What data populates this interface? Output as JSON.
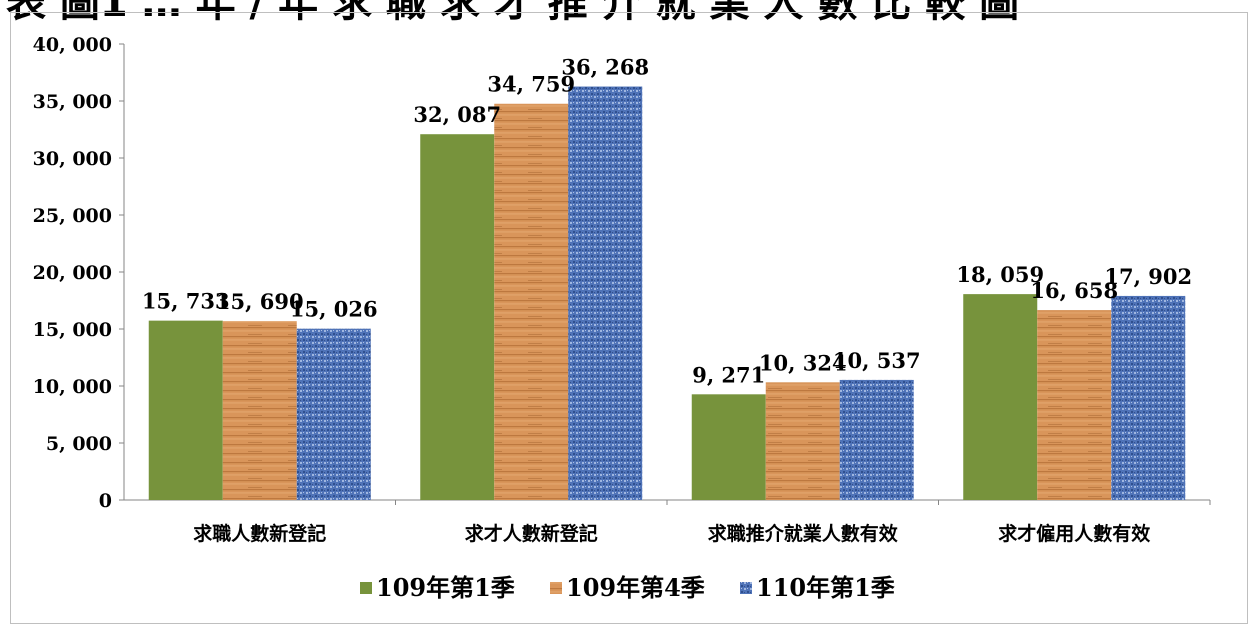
{
  "title": "表 圖1 … 年 / 年 求 職 求 才 推 介 就 業 人 數 比 較 圖",
  "colors": {
    "s1": "#77933c",
    "s2": "#d9955a",
    "s3": "#4f73b8",
    "axis": "#868686",
    "text": "#000000"
  },
  "chart_data": {
    "type": "bar",
    "categories": [
      "求職人數新登記",
      "求才人數新登記",
      "求職推介就業人數有效",
      "求才僱用人數有效"
    ],
    "series": [
      {
        "name": "109年第1季",
        "values": [
          15733,
          32087,
          9271,
          18059
        ],
        "color": "#77933c"
      },
      {
        "name": "109年第4季",
        "values": [
          15690,
          34759,
          10324,
          16658
        ],
        "color": "#d9955a"
      },
      {
        "name": "110年第1季",
        "values": [
          15026,
          36268,
          10537,
          17902
        ],
        "color": "#4f73b8"
      }
    ],
    "data_labels": [
      [
        "15, 733",
        "32, 087",
        "9, 271",
        "18, 059"
      ],
      [
        "15, 690",
        "34, 759",
        "10, 324",
        "16, 658"
      ],
      [
        "15, 026",
        "36, 268",
        "10, 537",
        "17, 902"
      ]
    ],
    "ylim": [
      0,
      40000
    ],
    "yticks": [
      0,
      5000,
      10000,
      15000,
      20000,
      25000,
      30000,
      35000,
      40000
    ],
    "ytick_labels": [
      "0",
      "5, 000",
      "10, 000",
      "15, 000",
      "20, 000",
      "25, 000",
      "30, 000",
      "35, 000",
      "40, 000"
    ],
    "grid": false,
    "legend_position": "bottom",
    "xlabel": "",
    "ylabel": ""
  }
}
